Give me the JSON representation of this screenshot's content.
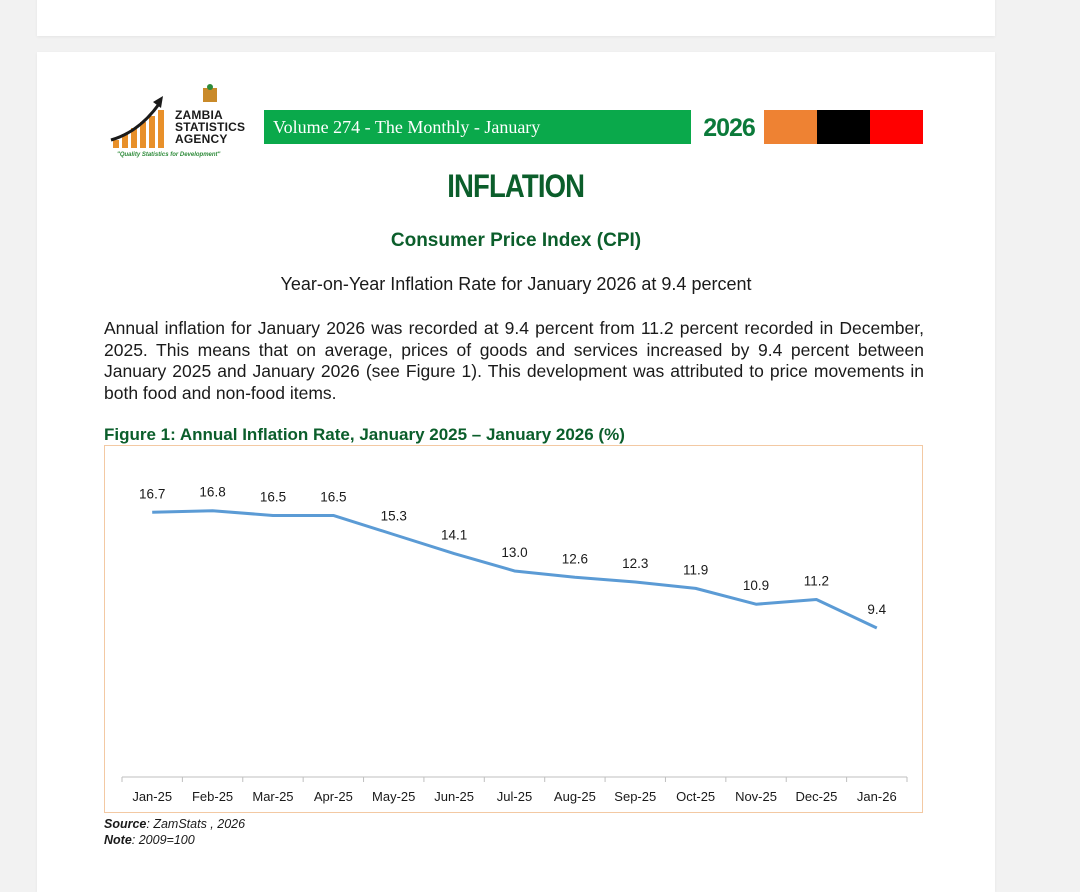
{
  "header": {
    "logo": {
      "line1": "ZAMBIA",
      "line2": "STATISTICS",
      "line3": "AGENCY",
      "tagline": "\"Quality Statistics for Development\""
    },
    "volume_label": "Volume 274 - The Monthly - January",
    "year": "2026",
    "colors": {
      "green": "#0aa94b",
      "orange": "#ee8233",
      "black": "#000000",
      "red": "#ff0000"
    }
  },
  "section": {
    "heading": "INFLATION",
    "subheading": "Consumer Price Index (CPI)",
    "summary": "Year-on-Year Inflation Rate for January 2026  at 9.4 percent",
    "paragraph": "Annual inflation for January 2026 was recorded at 9.4 percent from  11.2 percent  recorded in December, 2025. This means that on average, prices of goods and services increased by 9.4 percent between January 2025 and January 2026 (see Figure 1). This development was attributed to price movements in both food and non-food items."
  },
  "figure": {
    "title": "Figure 1: Annual Inflation Rate, January 2025 – January 2026 (%)",
    "source_label": "Source",
    "source_value": ": ZamStats , 2026",
    "note_label": "Note",
    "note_value": ": 2009=100"
  },
  "chart_data": {
    "type": "line",
    "title": "Figure 1: Annual Inflation Rate, January 2025 – January 2026 (%)",
    "categories": [
      "Jan-25",
      "Feb-25",
      "Mar-25",
      "Apr-25",
      "May-25",
      "Jun-25",
      "Jul-25",
      "Aug-25",
      "Sep-25",
      "Oct-25",
      "Nov-25",
      "Dec-25",
      "Jan-26"
    ],
    "series": [
      {
        "name": "Annual Inflation Rate (%)",
        "values": [
          16.7,
          16.8,
          16.5,
          16.5,
          15.3,
          14.1,
          13.0,
          12.6,
          12.3,
          11.9,
          10.9,
          11.2,
          9.4
        ],
        "labels": [
          "16.7",
          "16.8",
          "16.5",
          "16.5",
          "15.3",
          "14.1",
          "13.0",
          "12.6",
          "12.3",
          "11.9",
          "10.9",
          "11.2",
          "9.4"
        ]
      }
    ],
    "ylim": [
      0,
      20
    ],
    "xlabel": "",
    "ylabel": "",
    "grid": false,
    "line_color": "#5b9bd5"
  }
}
